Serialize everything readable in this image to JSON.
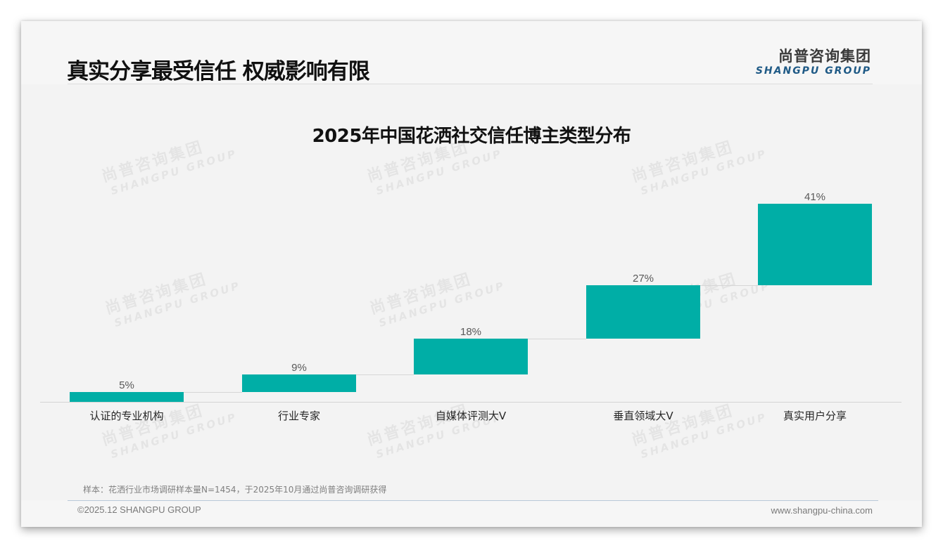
{
  "header": {
    "title": "真实分享最受信任 权威影响有限",
    "logo_cn": "尚普咨询集团",
    "logo_en": "SHANGPU GROUP"
  },
  "watermark": {
    "cn": "尚普咨询集团",
    "en": "SHANGPU GROUP"
  },
  "chart_data": {
    "type": "bar",
    "subtype": "waterfall",
    "title": "2025年中国花洒社交信任博主类型分布",
    "xlabel": "",
    "ylabel": "",
    "categories": [
      "认证的专业机构",
      "行业专家",
      "自媒体评测大V",
      "垂直领域大V",
      "真实用户分享"
    ],
    "values": [
      5,
      9,
      18,
      27,
      41
    ],
    "value_labels": [
      "5%",
      "9%",
      "18%",
      "27%",
      "41%"
    ],
    "unit": "%",
    "ylim": [
      0,
      100
    ],
    "grid": false,
    "legend": null,
    "bar_color": "#00AEA6"
  },
  "footer": {
    "note": "样本：花洒行业市场调研样本量N=1454，于2025年10月通过尚普咨询调研获得",
    "copyright": "©2025.12 SHANGPU GROUP",
    "website": "www.shangpu-china.com"
  }
}
